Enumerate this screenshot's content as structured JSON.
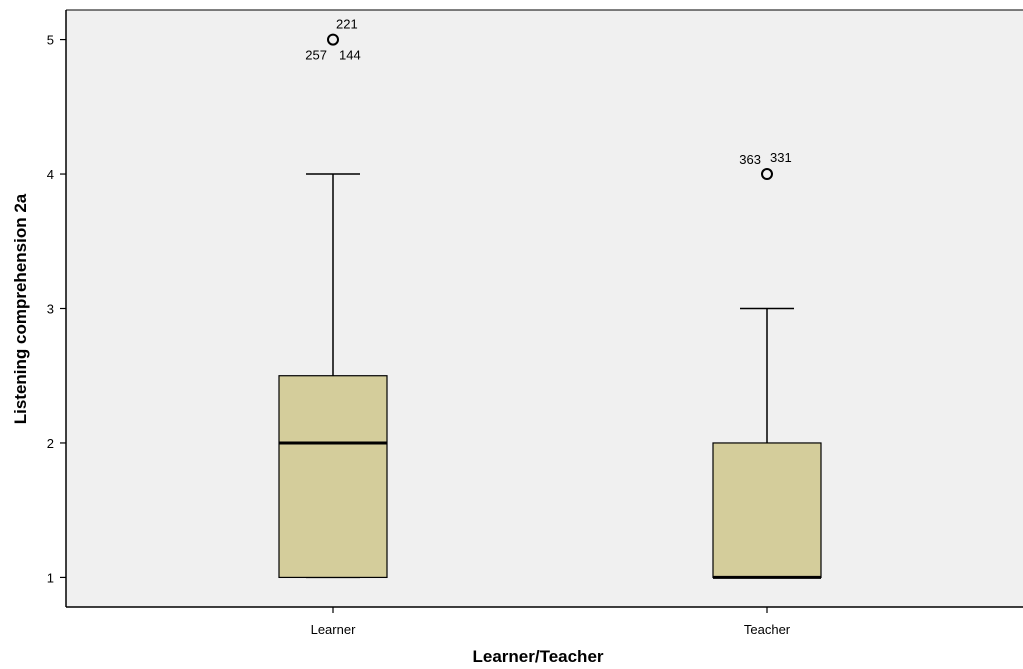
{
  "chart_data": {
    "type": "box",
    "xlabel": "Learner/Teacher",
    "ylabel": "Listening comprehension 2a",
    "categories": [
      "Learner",
      "Teacher"
    ],
    "yticks": [
      "1",
      "2",
      "3",
      "4",
      "5"
    ],
    "ylim": [
      0.78,
      5.22
    ],
    "grid": false,
    "colors": {
      "box_fill": "#d4cd9b",
      "plot_bg": "#f0f0f0",
      "stroke": "#000000"
    },
    "boxes": [
      {
        "category": "Learner",
        "whisker_low": 1,
        "q1": 1,
        "median": 2,
        "q3": 2.5,
        "whisker_high": 4,
        "outliers": [
          {
            "value": 5,
            "labels": [
              "221",
              "257",
              "144"
            ]
          }
        ]
      },
      {
        "category": "Teacher",
        "whisker_low": 1,
        "q1": 1,
        "median": 1,
        "q3": 2,
        "whisker_high": 3,
        "outliers": [
          {
            "value": 4,
            "labels": [
              "363",
              "331"
            ]
          }
        ]
      }
    ]
  }
}
